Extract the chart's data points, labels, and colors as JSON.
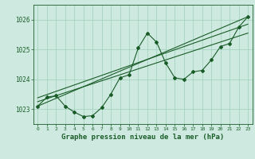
{
  "title": "Graphe pression niveau de la mer (hPa)",
  "bg_color": "#ceeae0",
  "grid_color": "#9ecfb8",
  "line_color": "#1a5c28",
  "ylim": [
    1022.5,
    1026.5
  ],
  "yticks": [
    1023,
    1024,
    1025,
    1026
  ],
  "xlim": [
    -0.5,
    23.5
  ],
  "xticks": [
    0,
    1,
    2,
    3,
    4,
    5,
    6,
    7,
    8,
    9,
    10,
    11,
    12,
    13,
    14,
    15,
    16,
    17,
    18,
    19,
    20,
    21,
    22,
    23
  ],
  "series1_x": [
    0,
    1,
    2,
    3,
    4,
    5,
    6,
    7,
    8,
    9,
    10,
    11,
    12,
    13,
    14,
    15,
    16,
    17,
    18,
    19,
    20,
    21,
    22,
    23
  ],
  "series1_y": [
    1023.1,
    1023.4,
    1023.45,
    1023.1,
    1022.9,
    1022.75,
    1022.78,
    1023.05,
    1023.5,
    1024.05,
    1024.15,
    1025.05,
    1025.55,
    1025.25,
    1024.55,
    1024.05,
    1024.0,
    1024.25,
    1024.3,
    1024.65,
    1025.1,
    1025.2,
    1025.75,
    1026.1
  ],
  "series2_x": [
    0,
    23
  ],
  "series2_y": [
    1023.1,
    1026.1
  ],
  "series3_x": [
    0,
    23
  ],
  "series3_y": [
    1023.38,
    1025.85
  ],
  "series4_x": [
    0,
    23
  ],
  "series4_y": [
    1023.25,
    1025.55
  ]
}
